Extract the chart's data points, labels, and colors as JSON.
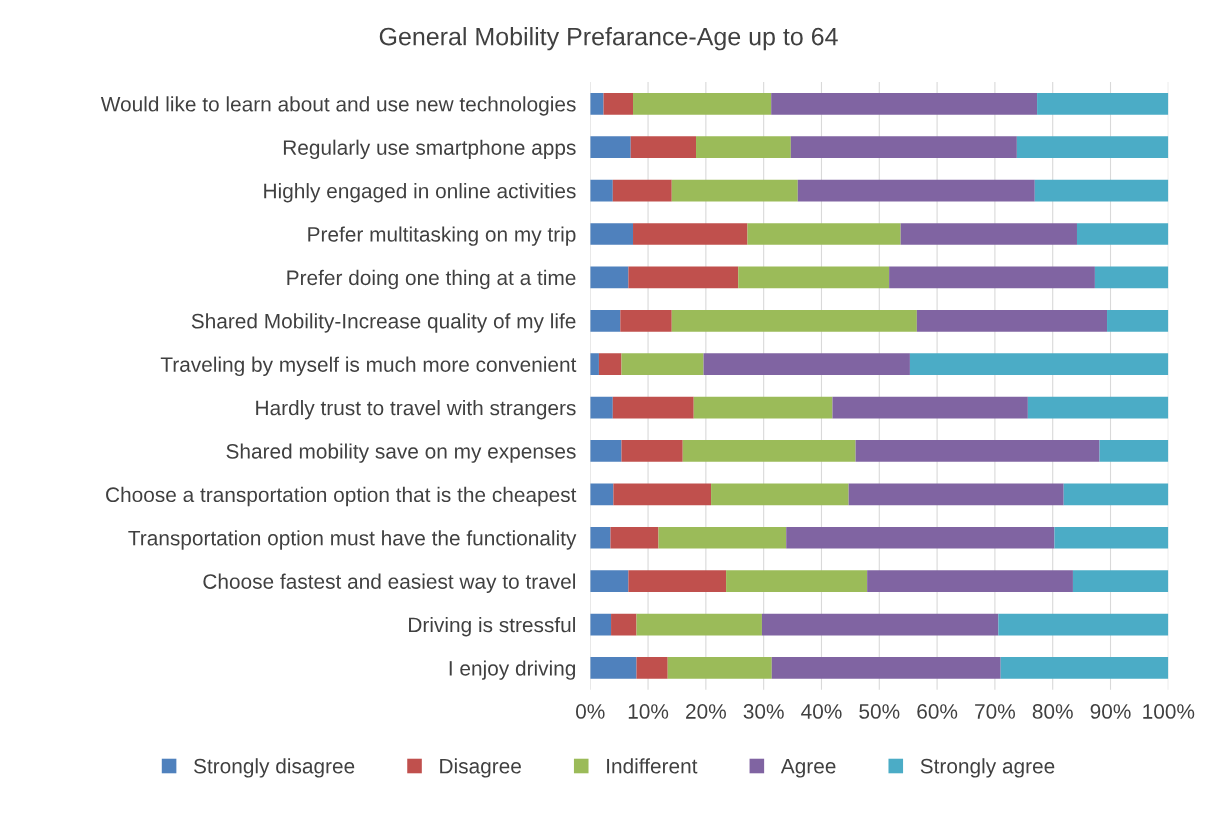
{
  "chart_data": {
    "type": "bar",
    "orientation": "horizontal",
    "stacked": true,
    "title": "General Mobility Prefarance-Age up to 64",
    "categories": [
      "Would like to learn about and use new technologies",
      "Regularly use smartphone apps",
      "Highly engaged in online activities",
      "Prefer multitasking on my trip",
      "Prefer doing one thing at a time",
      "Shared Mobility-Increase quality of my life",
      "Traveling by myself is much more convenient",
      "Hardly trust to travel with strangers",
      "Shared mobility save on my expenses",
      "Choose a transportation option that is the cheapest",
      "Transportation option must have the functionality",
      "Choose fastest and easiest way to travel",
      "Driving is stressful",
      "I enjoy driving"
    ],
    "series": [
      {
        "name": "Strongly disagree",
        "color": "#4f81bd",
        "values": [
          2.3,
          7,
          3.9,
          7.4,
          6.6,
          5.2,
          1.5,
          3.9,
          5.4,
          4,
          3.5,
          6.6,
          3.6,
          8
        ]
      },
      {
        "name": "Disagree",
        "color": "#c0504d",
        "values": [
          5.1,
          11.3,
          10.2,
          19.8,
          19,
          8.9,
          3.9,
          14,
          10.6,
          16.9,
          8.3,
          16.9,
          4.4,
          5.4
        ]
      },
      {
        "name": "Indifferent",
        "color": "#9bbb59",
        "values": [
          23.9,
          16.4,
          21.8,
          26.5,
          26.1,
          42.4,
          14.2,
          24,
          29.9,
          23.8,
          22.1,
          24.4,
          21.7,
          18
        ]
      },
      {
        "name": "Agree",
        "color": "#8064a2",
        "values": [
          46,
          39.1,
          41,
          30.5,
          35.6,
          32.9,
          35.7,
          33.8,
          42.2,
          37.2,
          46.4,
          35.6,
          40.9,
          39.6
        ]
      },
      {
        "name": "Strongly agree",
        "color": "#4bacc6",
        "values": [
          22.7,
          26.2,
          23.1,
          15.8,
          12.7,
          10.6,
          44.7,
          24.3,
          11.9,
          18.1,
          19.7,
          16.5,
          29.4,
          29
        ]
      }
    ],
    "xlim": [
      0,
      100
    ],
    "xticks": [
      {
        "value": 0,
        "label": "0%"
      },
      {
        "value": 10,
        "label": "10%"
      },
      {
        "value": 20,
        "label": "20%"
      },
      {
        "value": 30,
        "label": "30%"
      },
      {
        "value": 40,
        "label": "40%"
      },
      {
        "value": 50,
        "label": "50%"
      },
      {
        "value": 60,
        "label": "60%"
      },
      {
        "value": 70,
        "label": "70%"
      },
      {
        "value": 80,
        "label": "80%"
      },
      {
        "value": 90,
        "label": "90%"
      },
      {
        "value": 100,
        "label": "100%"
      }
    ],
    "grid": "x",
    "legend": "bottom"
  }
}
